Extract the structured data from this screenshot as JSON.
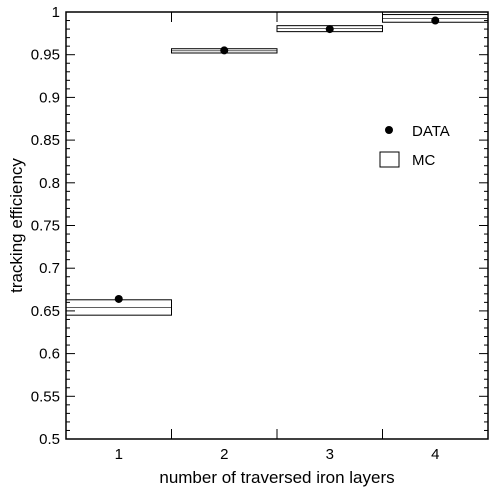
{
  "chart_data": {
    "type": "scatter",
    "xlabel": "number of traversed iron layers",
    "ylabel": "tracking efficiency",
    "xlim": [
      0.5,
      4.5
    ],
    "ylim": [
      0.5,
      1.0
    ],
    "x_ticks": [
      "1",
      "2",
      "3",
      "4"
    ],
    "y_ticks": [
      "0.5",
      "0.55",
      "0.6",
      "0.65",
      "0.7",
      "0.75",
      "0.8",
      "0.85",
      "0.9",
      "0.95",
      "1"
    ],
    "grid": false,
    "legend_position": "right",
    "series": [
      {
        "name": "DATA",
        "marker": "filled-circle",
        "color": "#000000",
        "x": [
          1,
          2,
          3,
          4
        ],
        "y": [
          0.664,
          0.955,
          0.98,
          0.99
        ]
      },
      {
        "name": "MC",
        "marker": "open-box",
        "color": "#000000",
        "x": [
          1,
          2,
          3,
          4
        ],
        "y_low": [
          0.645,
          0.952,
          0.977,
          0.988
        ],
        "y_high": [
          0.663,
          0.957,
          0.984,
          0.997
        ]
      }
    ]
  }
}
